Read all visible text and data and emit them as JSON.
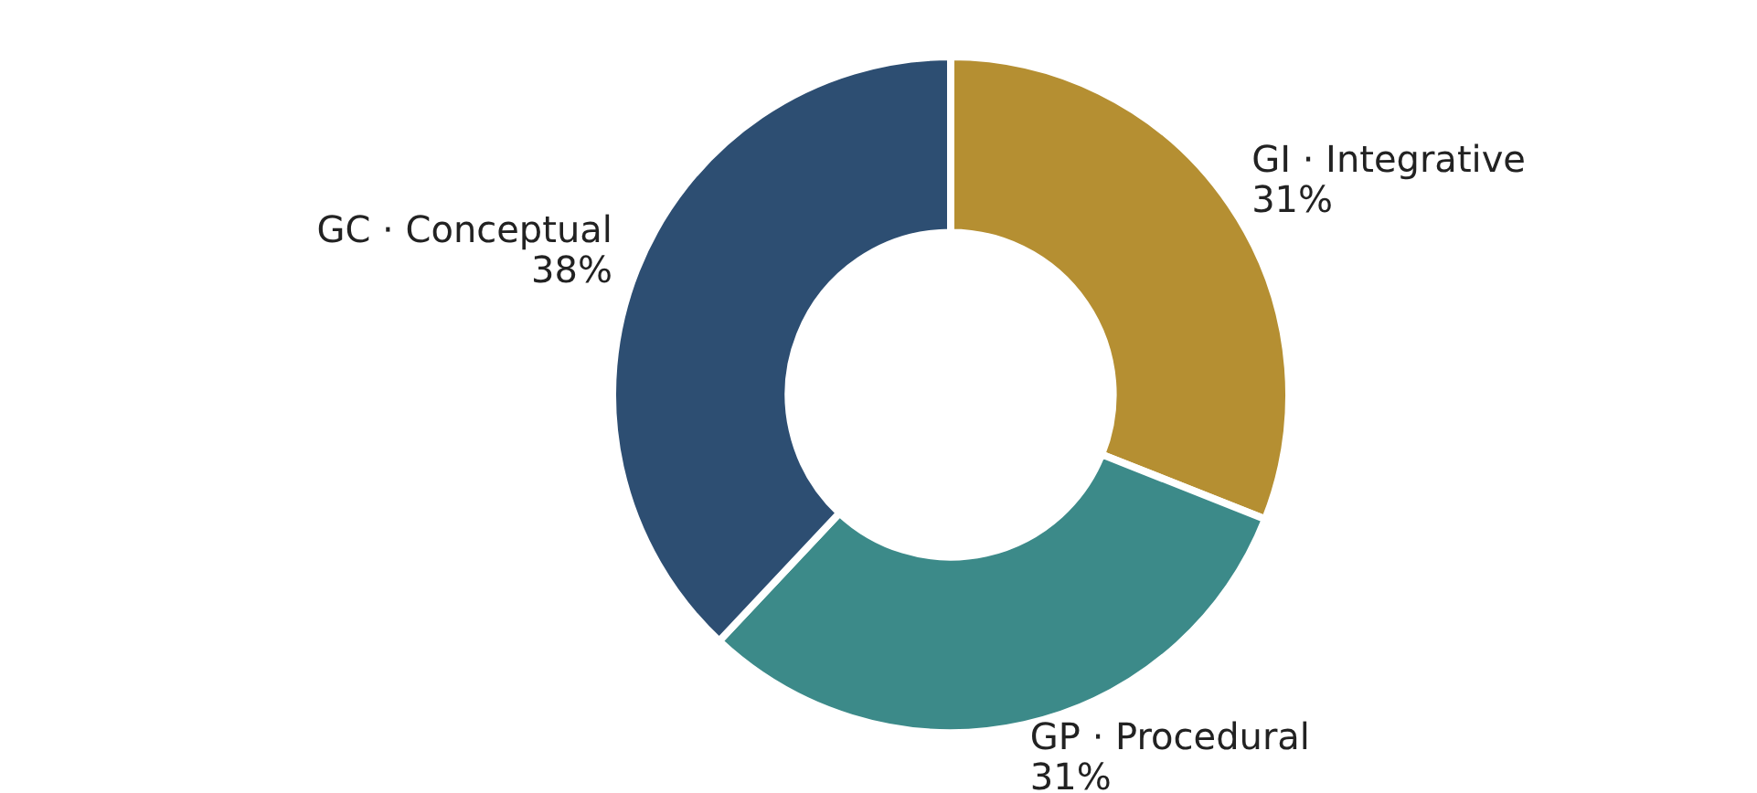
{
  "chart_data": {
    "type": "donut",
    "categories": [
      "GI · Integrative",
      "GP · Procedural",
      "GC · Conceptual"
    ],
    "values": [
      31,
      31,
      38
    ],
    "value_labels": [
      "31%",
      "31%",
      "38%"
    ],
    "colors": [
      "#b58f32",
      "#3c8a89",
      "#2d4e72"
    ],
    "legend": false
  }
}
